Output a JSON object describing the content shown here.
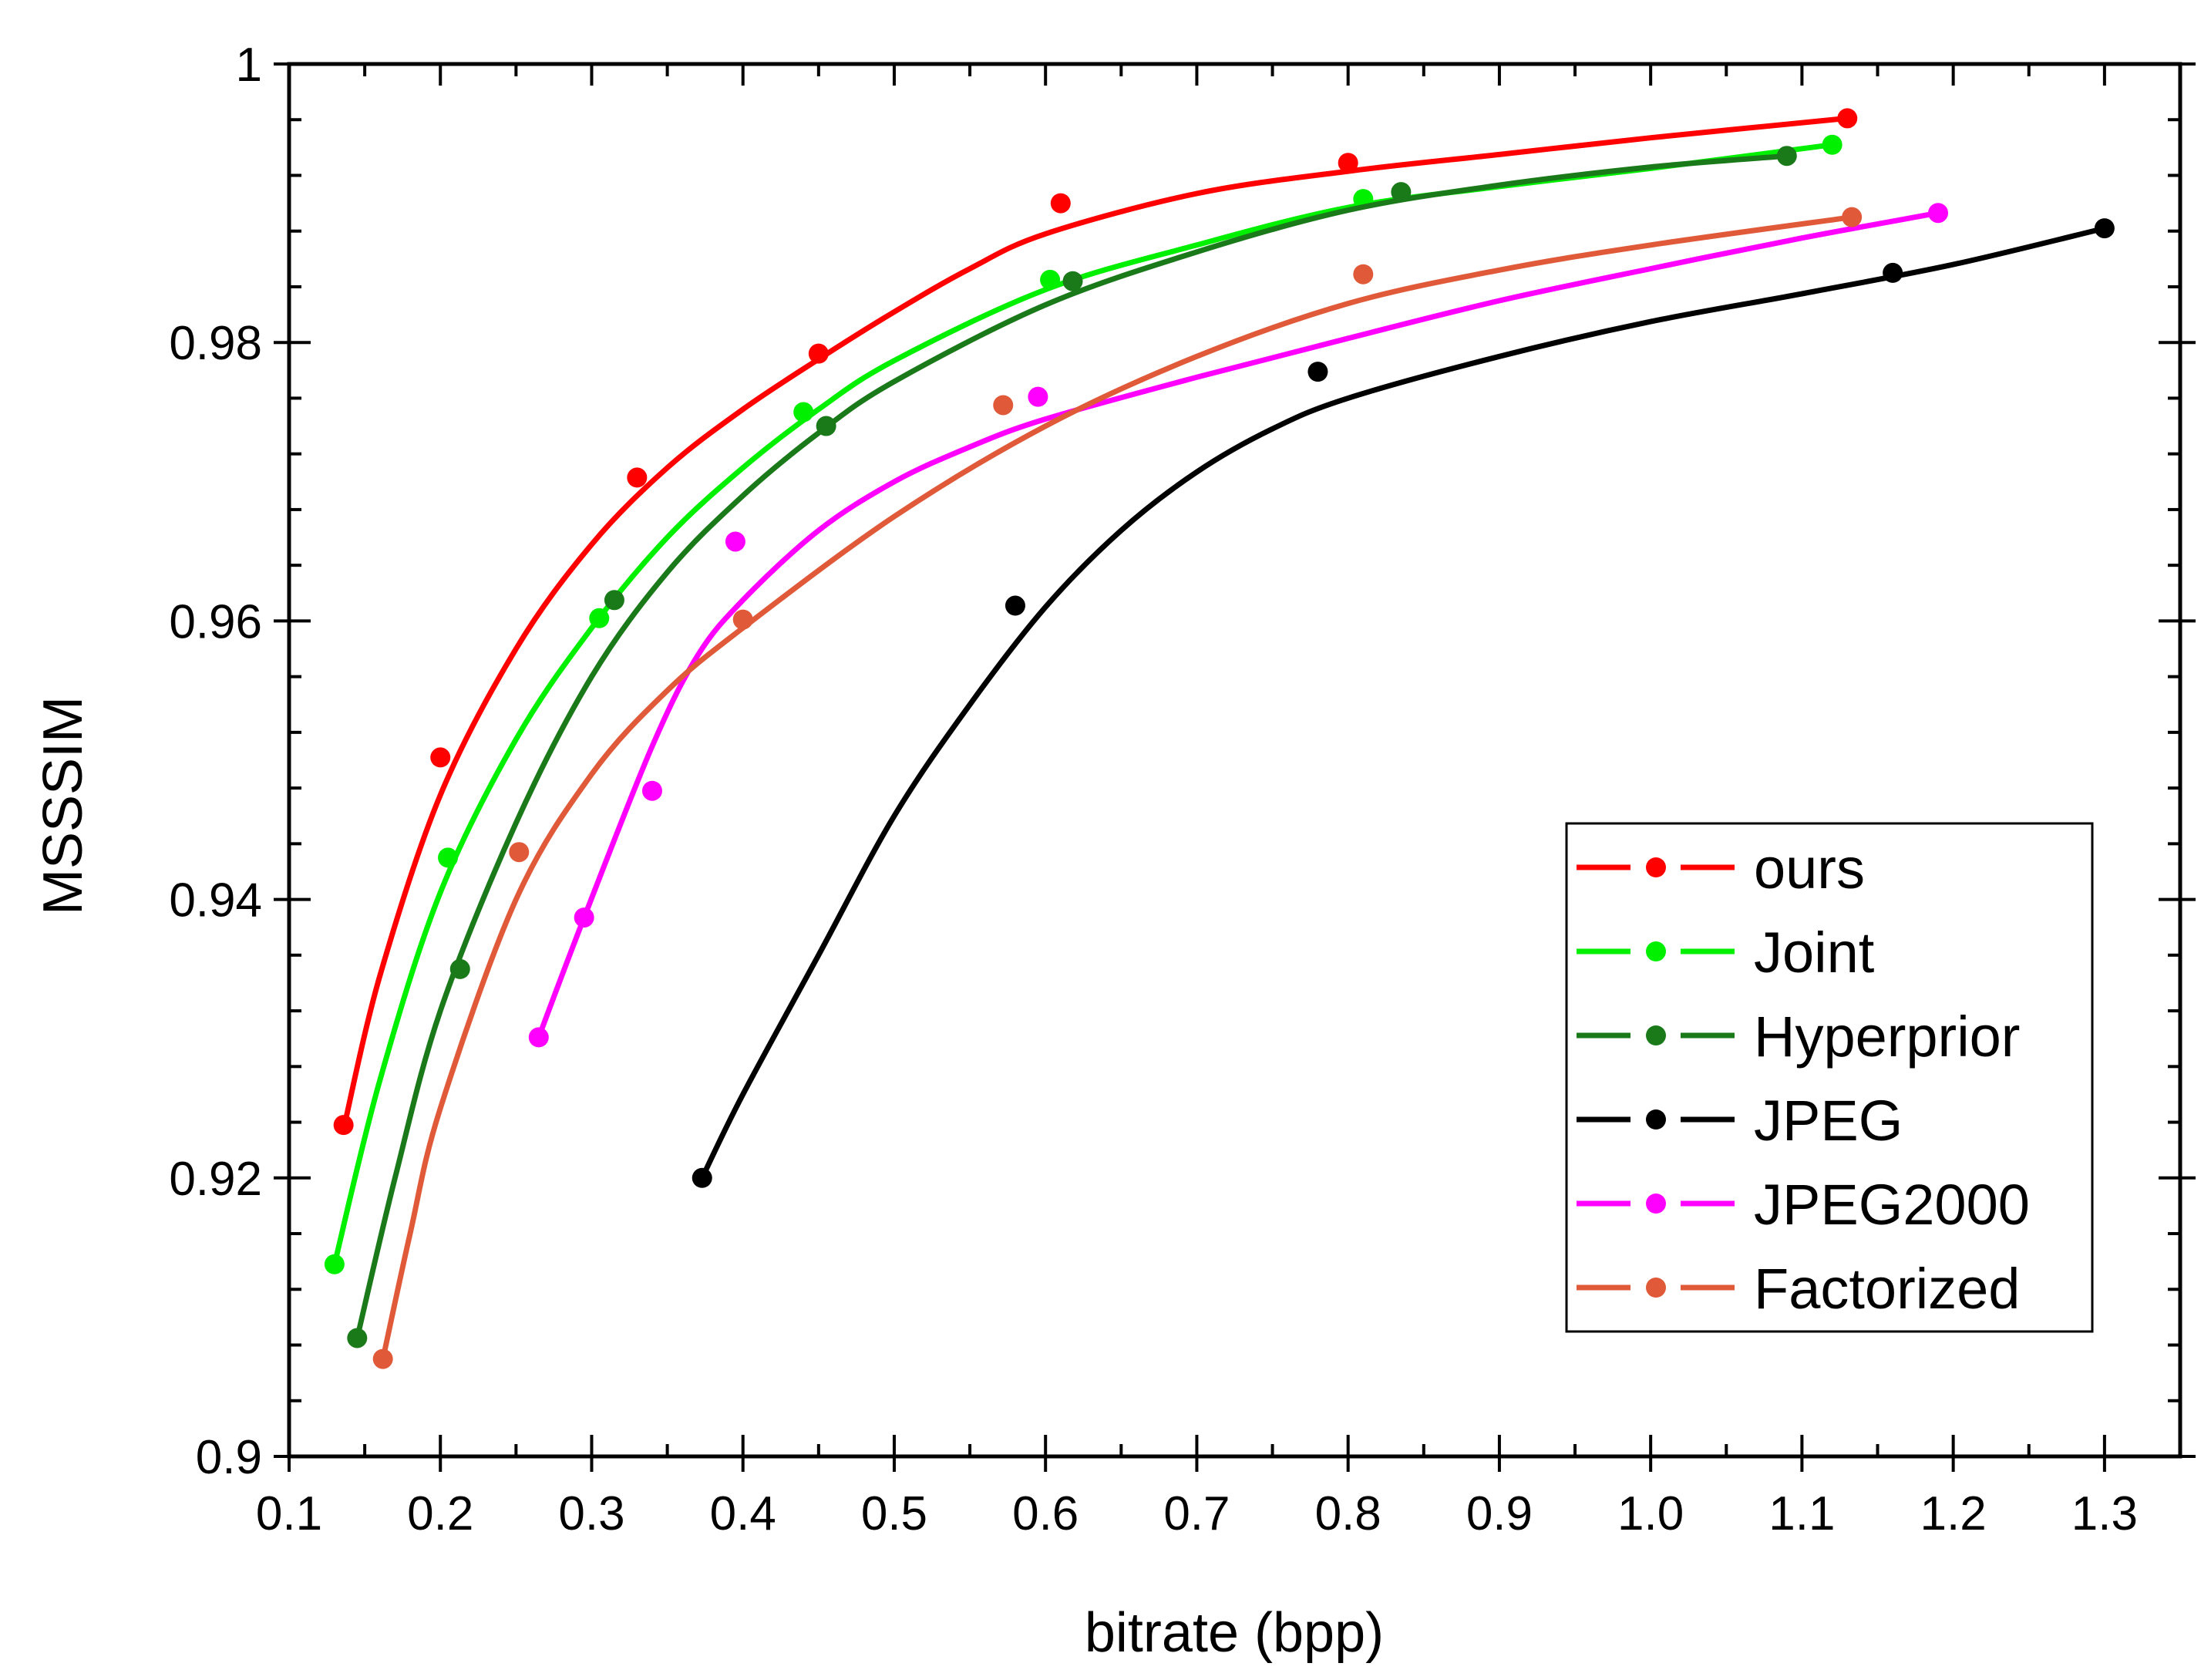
{
  "chart_data": {
    "type": "line",
    "title": "",
    "xlabel": "bitrate (bpp)",
    "ylabel": "MSSSIM",
    "xlim": [
      0.1,
      1.35
    ],
    "ylim": [
      0.9,
      1.0
    ],
    "xticks": [
      0.1,
      0.2,
      0.3,
      0.4,
      0.5,
      0.6,
      0.7,
      0.8,
      0.9,
      1.0,
      1.1,
      1.2,
      1.3
    ],
    "xtick_labels": [
      "0.1",
      "0.2",
      "0.3",
      "0.4",
      "0.5",
      "0.6",
      "0.7",
      "0.8",
      "0.9",
      "1.0",
      "1.1",
      "1.2",
      "1.3"
    ],
    "yticks": [
      0.9,
      0.92,
      0.94,
      0.96,
      0.98,
      1.0
    ],
    "ytick_labels": [
      "0.9",
      "0.92",
      "0.94",
      "0.96",
      "0.98",
      "1"
    ],
    "grid": false,
    "legend_position": "bottom-right",
    "series": [
      {
        "name": "ours",
        "color": "#ff0000",
        "points": [
          [
            0.136,
            0.9238
          ],
          [
            0.2,
            0.9502
          ],
          [
            0.33,
            0.9703
          ],
          [
            0.45,
            0.9792
          ],
          [
            0.61,
            0.99
          ],
          [
            0.8,
            0.9929
          ],
          [
            1.13,
            0.9961
          ]
        ],
        "curve": [
          [
            0.136,
            0.9235
          ],
          [
            0.16,
            0.9345
          ],
          [
            0.2,
            0.9475
          ],
          [
            0.25,
            0.958
          ],
          [
            0.3,
            0.9655
          ],
          [
            0.35,
            0.971
          ],
          [
            0.4,
            0.9752
          ],
          [
            0.45,
            0.9788
          ],
          [
            0.5,
            0.9822
          ],
          [
            0.55,
            0.9853
          ],
          [
            0.6,
            0.9878
          ],
          [
            0.7,
            0.9907
          ],
          [
            0.8,
            0.9923
          ],
          [
            0.9,
            0.9935
          ],
          [
            1.0,
            0.9947
          ],
          [
            1.13,
            0.9961
          ]
        ]
      },
      {
        "name": "Joint",
        "color": "#00f000",
        "points": [
          [
            0.13,
            0.9138
          ],
          [
            0.205,
            0.943
          ],
          [
            0.305,
            0.9602
          ],
          [
            0.44,
            0.975
          ],
          [
            0.603,
            0.9845
          ],
          [
            0.81,
            0.9903
          ],
          [
            1.12,
            0.9942
          ]
        ],
        "curve": [
          [
            0.13,
            0.9138
          ],
          [
            0.16,
            0.927
          ],
          [
            0.2,
            0.9405
          ],
          [
            0.25,
            0.9515
          ],
          [
            0.3,
            0.9595
          ],
          [
            0.35,
            0.966
          ],
          [
            0.4,
            0.971
          ],
          [
            0.45,
            0.9752
          ],
          [
            0.5,
            0.9787
          ],
          [
            0.6,
            0.9838
          ],
          [
            0.7,
            0.987
          ],
          [
            0.8,
            0.9897
          ],
          [
            0.9,
            0.9912
          ],
          [
            1.0,
            0.9925
          ],
          [
            1.12,
            0.9942
          ]
        ]
      },
      {
        "name": "Hyperprior",
        "color": "#1a7a1a",
        "points": [
          [
            0.145,
            0.9085
          ],
          [
            0.213,
            0.935
          ],
          [
            0.315,
            0.9615
          ],
          [
            0.455,
            0.974
          ],
          [
            0.618,
            0.9844
          ],
          [
            0.835,
            0.9908
          ],
          [
            1.09,
            0.9934
          ]
        ],
        "curve": [
          [
            0.145,
            0.9085
          ],
          [
            0.17,
            0.92
          ],
          [
            0.2,
            0.932
          ],
          [
            0.25,
            0.9455
          ],
          [
            0.3,
            0.956
          ],
          [
            0.35,
            0.9635
          ],
          [
            0.4,
            0.969
          ],
          [
            0.45,
            0.9735
          ],
          [
            0.5,
            0.9772
          ],
          [
            0.6,
            0.9827
          ],
          [
            0.7,
            0.9865
          ],
          [
            0.8,
            0.9895
          ],
          [
            0.9,
            0.9913
          ],
          [
            1.0,
            0.9926
          ],
          [
            1.09,
            0.9934
          ]
        ]
      },
      {
        "name": "JPEG",
        "color": "#000000",
        "points": [
          [
            0.373,
            0.92
          ],
          [
            0.58,
            0.9611
          ],
          [
            0.78,
            0.9779
          ],
          [
            1.16,
            0.985
          ],
          [
            1.3,
            0.9882
          ]
        ],
        "curve": [
          [
            0.373,
            0.92
          ],
          [
            0.4,
            0.926
          ],
          [
            0.45,
            0.936
          ],
          [
            0.5,
            0.946
          ],
          [
            0.55,
            0.954
          ],
          [
            0.6,
            0.961
          ],
          [
            0.65,
            0.9665
          ],
          [
            0.7,
            0.9707
          ],
          [
            0.75,
            0.9738
          ],
          [
            0.8,
            0.976
          ],
          [
            0.9,
            0.979
          ],
          [
            1.0,
            0.9815
          ],
          [
            1.1,
            0.9835
          ],
          [
            1.2,
            0.9856
          ],
          [
            1.3,
            0.9882
          ]
        ]
      },
      {
        "name": "JPEG2000",
        "color": "#ff00ff",
        "points": [
          [
            0.265,
            0.9301
          ],
          [
            0.295,
            0.9387
          ],
          [
            0.34,
            0.9478
          ],
          [
            0.395,
            0.9657
          ],
          [
            0.595,
            0.9761
          ],
          [
            1.19,
            0.9893
          ]
        ],
        "curve": [
          [
            0.265,
            0.9301
          ],
          [
            0.295,
            0.9387
          ],
          [
            0.34,
            0.951
          ],
          [
            0.37,
            0.9575
          ],
          [
            0.4,
            0.9615
          ],
          [
            0.45,
            0.9665
          ],
          [
            0.5,
            0.97
          ],
          [
            0.55,
            0.9725
          ],
          [
            0.6,
            0.9745
          ],
          [
            0.7,
            0.9775
          ],
          [
            0.8,
            0.9803
          ],
          [
            0.9,
            0.983
          ],
          [
            1.0,
            0.9853
          ],
          [
            1.1,
            0.9875
          ],
          [
            1.19,
            0.9893
          ]
        ]
      },
      {
        "name": "Factorized",
        "color": "#e05a3a",
        "points": [
          [
            0.162,
            0.907
          ],
          [
            0.252,
            0.9434
          ],
          [
            0.4,
            0.9601
          ],
          [
            0.572,
            0.9755
          ],
          [
            0.81,
            0.9849
          ],
          [
            1.133,
            0.989
          ]
        ],
        "curve": [
          [
            0.162,
            0.907
          ],
          [
            0.18,
            0.916
          ],
          [
            0.2,
            0.925
          ],
          [
            0.25,
            0.94
          ],
          [
            0.3,
            0.949
          ],
          [
            0.35,
            0.955
          ],
          [
            0.4,
            0.9595
          ],
          [
            0.5,
            0.9675
          ],
          [
            0.6,
            0.974
          ],
          [
            0.7,
            0.979
          ],
          [
            0.8,
            0.9828
          ],
          [
            0.9,
            0.9852
          ],
          [
            1.0,
            0.987
          ],
          [
            1.133,
            0.989
          ]
        ]
      }
    ]
  }
}
